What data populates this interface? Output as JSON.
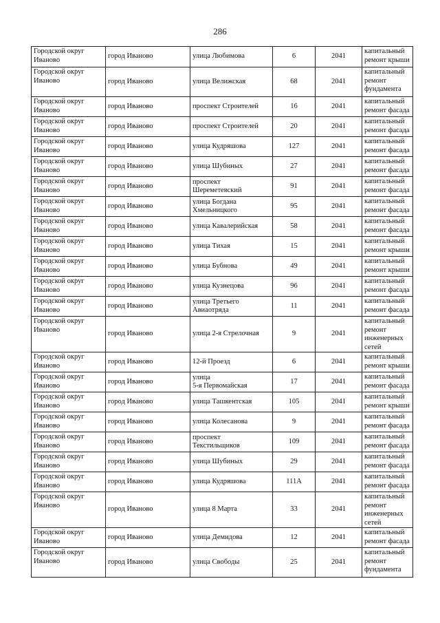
{
  "page_number": "286",
  "rows": [
    {
      "okrug": "Городской округ\nИваново",
      "city": "город Иваново",
      "street": "улица Любимова",
      "house": "6",
      "year": "2041",
      "work": "капитальный\nремонт крыши"
    },
    {
      "okrug": "Городской округ\nИваново",
      "city": "город Иваново",
      "street": "улица Велижская",
      "house": "68",
      "year": "2041",
      "work": "капитальный\nремонт\nфундамента"
    },
    {
      "okrug": "Городской округ\nИваново",
      "city": "город Иваново",
      "street": "проспект Строителей",
      "house": "16",
      "year": "2041",
      "work": "капитальный\nремонт фасада"
    },
    {
      "okrug": "Городской округ\nИваново",
      "city": "город Иваново",
      "street": "проспект Строителей",
      "house": "20",
      "year": "2041",
      "work": "капитальный\nремонт фасада"
    },
    {
      "okrug": "Городской округ\nИваново",
      "city": "город Иваново",
      "street": "улица Кудряшова",
      "house": "127",
      "year": "2041",
      "work": "капитальный\nремонт фасада"
    },
    {
      "okrug": "Городской округ\nИваново",
      "city": "город Иваново",
      "street": "улица Шубиных",
      "house": "27",
      "year": "2041",
      "work": "капитальный\nремонт фасада"
    },
    {
      "okrug": "Городской округ\nИваново",
      "city": "город Иваново",
      "street": "проспект\nШереметевский",
      "house": "91",
      "year": "2041",
      "work": "капитальный\nремонт фасада"
    },
    {
      "okrug": "Городской округ\nИваново",
      "city": "город Иваново",
      "street": "улица Богдана\nХмельницкого",
      "house": "95",
      "year": "2041",
      "work": "капитальный\nремонт фасада"
    },
    {
      "okrug": "Городской округ\nИваново",
      "city": "город Иваново",
      "street": "улица Кавалерийская",
      "house": "58",
      "year": "2041",
      "work": "капитальный\nремонт фасада"
    },
    {
      "okrug": "Городской округ\nИваново",
      "city": "город Иваново",
      "street": "улица Тихая",
      "house": "15",
      "year": "2041",
      "work": "капитальный\nремонт крыши"
    },
    {
      "okrug": "Городской округ\nИваново",
      "city": "город Иваново",
      "street": "улица Бубнова",
      "house": "49",
      "year": "2041",
      "work": "капитальный\nремонт крыши"
    },
    {
      "okrug": "Городской округ\nИваново",
      "city": "город Иваново",
      "street": "улица Кузнецова",
      "house": "96",
      "year": "2041",
      "work": "капитальный\nремонт фасада"
    },
    {
      "okrug": "Городской округ\nИваново",
      "city": "город Иваново",
      "street": "улица Третьего\nАвиаотряда",
      "house": "11",
      "year": "2041",
      "work": "капитальный\nремонт фасада"
    },
    {
      "okrug": "Городской округ\nИваново",
      "city": "город Иваново",
      "street": "улица 2-я Стрелочная",
      "house": "9",
      "year": "2041",
      "work": "капитальный\nремонт\nинженерных\nсетей"
    },
    {
      "okrug": "Городской округ\nИваново",
      "city": "город Иваново",
      "street": "12-й Проезд",
      "house": "6",
      "year": "2041",
      "work": "капитальный\nремонт крыши"
    },
    {
      "okrug": "Городской округ\nИваново",
      "city": "город Иваново",
      "street": "улица\n5-я Первомайская",
      "house": "17",
      "year": "2041",
      "work": "капитальный\nремонт фасада"
    },
    {
      "okrug": "Городской округ\nИваново",
      "city": "город Иваново",
      "street": "улица Ташкентская",
      "house": "105",
      "year": "2041",
      "work": "капитальный\nремонт крыши"
    },
    {
      "okrug": "Городской округ\nИваново",
      "city": "город Иваново",
      "street": "улица Колесанова",
      "house": "9",
      "year": "2041",
      "work": "капитальный\nремонт фасада"
    },
    {
      "okrug": "Городской округ\nИваново",
      "city": "город Иваново",
      "street": "проспект\nТекстильщиков",
      "house": "109",
      "year": "2041",
      "work": "капитальный\nремонт фасада"
    },
    {
      "okrug": "Городской округ\nИваново",
      "city": "город Иваново",
      "street": "улица Шубиных",
      "house": "29",
      "year": "2041",
      "work": "капитальный\nремонт фасада"
    },
    {
      "okrug": "Городской округ\nИваново",
      "city": "город Иваново",
      "street": "улица Кудряшова",
      "house": "111А",
      "year": "2041",
      "work": "капитальный\nремонт фасада"
    },
    {
      "okrug": "Городской округ\nИваново",
      "city": "город Иваново",
      "street": "улица 8 Марта",
      "house": "33",
      "year": "2041",
      "work": "капитальный\nремонт\nинженерных\nсетей"
    },
    {
      "okrug": "Городской округ\nИваново",
      "city": "город Иваново",
      "street": "улица Демидова",
      "house": "12",
      "year": "2041",
      "work": "капитальный\nремонт фасада"
    },
    {
      "okrug": "Городской округ\nИваново",
      "city": "город Иваново",
      "street": "улица Свободы",
      "house": "25",
      "year": "2041",
      "work": "капитальный\nремонт\nфундамента"
    }
  ]
}
